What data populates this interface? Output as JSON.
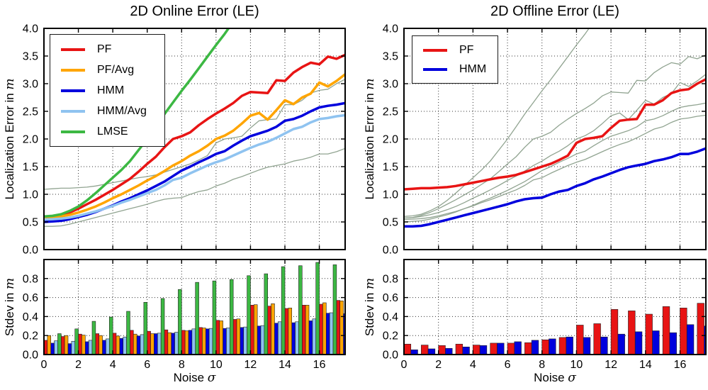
{
  "figure": {
    "background": "#ffffff",
    "axis_color": "#000000",
    "grid_color": "#333333",
    "palette": {
      "pf": "#e81414",
      "pf_avg": "#ffa500",
      "hmm": "#0000dd",
      "hmm_avg": "#8fc3f0",
      "lmse": "#3cb843",
      "reference": "#91a491"
    }
  },
  "chart_data": [
    {
      "id": "online-error",
      "type": "line",
      "title": "2D Online Error (LE)",
      "ylabel": {
        "text": "Localization Error in ",
        "math": "m"
      },
      "xlabel": null,
      "xlim": [
        0,
        17.5
      ],
      "ylim": [
        0,
        4
      ],
      "xticks": [
        0,
        2,
        4,
        6,
        8,
        10,
        12,
        14,
        16
      ],
      "xtick_labels": null,
      "yticks": [
        0,
        0.5,
        1,
        1.5,
        2,
        2.5,
        3,
        3.5,
        4
      ],
      "ytick_labels": [
        "0.0",
        "0.5",
        "1.0",
        "1.5",
        "2.0",
        "2.5",
        "3.0",
        "3.5",
        "4.0"
      ],
      "legend_position": "top-left",
      "x": [
        0,
        0.5,
        1,
        1.5,
        2,
        2.5,
        3,
        3.5,
        4,
        4.5,
        5,
        5.5,
        6,
        6.5,
        7,
        7.5,
        8,
        8.5,
        9,
        9.5,
        10,
        10.5,
        11,
        11.5,
        12,
        12.5,
        13,
        13.5,
        14,
        14.5,
        15,
        15.5,
        16,
        16.5,
        17,
        17.5
      ],
      "series": [
        {
          "name": "PF",
          "role": "offline-reference",
          "color": "#91a491",
          "width": 1.3,
          "in_legend": false,
          "values": [
            1.09,
            1.1,
            1.11,
            1.11,
            1.12,
            1.13,
            1.15,
            1.18,
            1.21,
            1.24,
            1.27,
            1.3,
            1.32,
            1.35,
            1.4,
            1.45,
            1.5,
            1.55,
            1.62,
            1.7,
            1.93,
            2.0,
            2.02,
            2.05,
            2.2,
            2.33,
            2.35,
            2.36,
            2.62,
            2.62,
            2.7,
            2.83,
            2.88,
            2.9,
            3.0,
            3.08
          ]
        },
        {
          "name": "HMM",
          "role": "offline-reference",
          "color": "#91a491",
          "width": 1.3,
          "in_legend": false,
          "values": [
            0.42,
            0.42,
            0.43,
            0.46,
            0.5,
            0.54,
            0.58,
            0.62,
            0.66,
            0.7,
            0.74,
            0.78,
            0.82,
            0.87,
            0.91,
            0.93,
            0.94,
            1.0,
            1.05,
            1.08,
            1.15,
            1.2,
            1.27,
            1.32,
            1.38,
            1.44,
            1.49,
            1.52,
            1.55,
            1.6,
            1.63,
            1.67,
            1.73,
            1.73,
            1.77,
            1.83
          ]
        },
        {
          "name": "PF",
          "role": "main",
          "color": "#e81414",
          "width": 3.5,
          "in_legend": true,
          "values": [
            0.57,
            0.58,
            0.62,
            0.67,
            0.74,
            0.82,
            0.9,
            0.99,
            1.08,
            1.18,
            1.28,
            1.41,
            1.55,
            1.68,
            1.85,
            2.0,
            2.05,
            2.12,
            2.25,
            2.36,
            2.46,
            2.55,
            2.65,
            2.78,
            2.85,
            2.84,
            2.83,
            3.06,
            3.05,
            3.2,
            3.3,
            3.38,
            3.35,
            3.49,
            3.45,
            3.52
          ]
        },
        {
          "name": "PF/Avg",
          "role": "main",
          "color": "#ffa500",
          "width": 3.5,
          "in_legend": true,
          "values": [
            0.57,
            0.575,
            0.6,
            0.63,
            0.67,
            0.72,
            0.78,
            0.85,
            0.93,
            1.0,
            1.08,
            1.16,
            1.25,
            1.33,
            1.42,
            1.52,
            1.6,
            1.7,
            1.78,
            1.88,
            2.0,
            2.06,
            2.15,
            2.28,
            2.42,
            2.47,
            2.35,
            2.52,
            2.7,
            2.63,
            2.75,
            2.82,
            3.02,
            2.95,
            3.05,
            3.17
          ]
        },
        {
          "name": "HMM",
          "role": "main",
          "color": "#0000dd",
          "width": 3.5,
          "in_legend": true,
          "values": [
            0.5,
            0.51,
            0.52,
            0.55,
            0.59,
            0.63,
            0.68,
            0.74,
            0.8,
            0.87,
            0.93,
            1.0,
            1.07,
            1.15,
            1.23,
            1.33,
            1.43,
            1.5,
            1.58,
            1.65,
            1.73,
            1.78,
            1.88,
            1.97,
            2.05,
            2.1,
            2.15,
            2.22,
            2.33,
            2.36,
            2.42,
            2.5,
            2.57,
            2.6,
            2.62,
            2.65
          ]
        },
        {
          "name": "HMM/Avg",
          "role": "main",
          "color": "#8fc3f0",
          "width": 3.5,
          "in_legend": true,
          "values": [
            0.545,
            0.55,
            0.56,
            0.58,
            0.61,
            0.65,
            0.69,
            0.74,
            0.79,
            0.85,
            0.9,
            0.96,
            1.02,
            1.08,
            1.16,
            1.26,
            1.3,
            1.38,
            1.45,
            1.52,
            1.58,
            1.63,
            1.7,
            1.77,
            1.84,
            1.9,
            1.95,
            2.02,
            2.1,
            2.18,
            2.22,
            2.3,
            2.36,
            2.38,
            2.41,
            2.43
          ]
        },
        {
          "name": "LMSE",
          "role": "main",
          "color": "#3cb843",
          "width": 3.5,
          "in_legend": true,
          "values": [
            0.6,
            0.61,
            0.64,
            0.7,
            0.78,
            0.89,
            1.02,
            1.16,
            1.3,
            1.44,
            1.6,
            1.8,
            2.0,
            2.22,
            2.45,
            2.66,
            2.87,
            3.07,
            3.28,
            3.49,
            3.7,
            3.9,
            4.12,
            null,
            null,
            null,
            null,
            null,
            null,
            null,
            null,
            null,
            null,
            null,
            null,
            null
          ]
        }
      ]
    },
    {
      "id": "offline-error",
      "type": "line",
      "title": "2D Offline Error (LE)",
      "ylabel": {
        "text": "Localization Error in ",
        "math": "m"
      },
      "xlabel": null,
      "xlim": [
        0,
        17.5
      ],
      "ylim": [
        0,
        4
      ],
      "xticks": [
        0,
        2,
        4,
        6,
        8,
        10,
        12,
        14,
        16
      ],
      "xtick_labels": null,
      "yticks": [
        0,
        0.5,
        1,
        1.5,
        2,
        2.5,
        3,
        3.5,
        4
      ],
      "ytick_labels": [
        "0.0",
        "0.5",
        "1.0",
        "1.5",
        "2.0",
        "2.5",
        "3.0",
        "3.5",
        "4.0"
      ],
      "legend_position": "top-left",
      "x": [
        0,
        0.5,
        1,
        1.5,
        2,
        2.5,
        3,
        3.5,
        4,
        4.5,
        5,
        5.5,
        6,
        6.5,
        7,
        7.5,
        8,
        8.5,
        9,
        9.5,
        10,
        10.5,
        11,
        11.5,
        12,
        12.5,
        13,
        13.5,
        14,
        14.5,
        15,
        15.5,
        16,
        16.5,
        17,
        17.5
      ],
      "series": [
        {
          "name": "PF",
          "role": "online-reference",
          "color": "#91a491",
          "width": 1.3,
          "in_legend": false,
          "values": [
            0.57,
            0.58,
            0.62,
            0.67,
            0.74,
            0.82,
            0.9,
            0.99,
            1.08,
            1.18,
            1.28,
            1.41,
            1.55,
            1.68,
            1.85,
            2.0,
            2.05,
            2.12,
            2.25,
            2.36,
            2.46,
            2.55,
            2.65,
            2.78,
            2.85,
            2.84,
            2.83,
            3.06,
            3.05,
            3.2,
            3.3,
            3.38,
            3.35,
            3.49,
            3.45,
            3.52
          ]
        },
        {
          "name": "PF/Avg",
          "role": "online-reference",
          "color": "#91a491",
          "width": 1.3,
          "in_legend": false,
          "values": [
            0.57,
            0.575,
            0.6,
            0.63,
            0.67,
            0.72,
            0.78,
            0.85,
            0.93,
            1.0,
            1.08,
            1.16,
            1.25,
            1.33,
            1.42,
            1.52,
            1.6,
            1.7,
            1.78,
            1.88,
            2.0,
            2.06,
            2.15,
            2.28,
            2.42,
            2.47,
            2.35,
            2.52,
            2.7,
            2.63,
            2.75,
            2.82,
            3.02,
            2.95,
            3.05,
            3.17
          ]
        },
        {
          "name": "HMM",
          "role": "online-reference",
          "color": "#91a491",
          "width": 1.3,
          "in_legend": false,
          "values": [
            0.5,
            0.51,
            0.52,
            0.55,
            0.59,
            0.63,
            0.68,
            0.74,
            0.8,
            0.87,
            0.93,
            1.0,
            1.07,
            1.15,
            1.23,
            1.33,
            1.43,
            1.5,
            1.58,
            1.65,
            1.73,
            1.78,
            1.88,
            1.97,
            2.05,
            2.1,
            2.15,
            2.22,
            2.33,
            2.36,
            2.42,
            2.5,
            2.57,
            2.6,
            2.62,
            2.65
          ]
        },
        {
          "name": "HMM/Avg",
          "role": "online-reference",
          "color": "#91a491",
          "width": 1.3,
          "in_legend": false,
          "values": [
            0.545,
            0.55,
            0.56,
            0.58,
            0.61,
            0.65,
            0.69,
            0.74,
            0.79,
            0.85,
            0.9,
            0.96,
            1.02,
            1.08,
            1.16,
            1.26,
            1.3,
            1.38,
            1.45,
            1.52,
            1.58,
            1.63,
            1.7,
            1.77,
            1.84,
            1.9,
            1.95,
            2.02,
            2.1,
            2.18,
            2.22,
            2.3,
            2.36,
            2.38,
            2.41,
            2.43
          ]
        },
        {
          "name": "LMSE",
          "role": "online-reference",
          "color": "#91a491",
          "width": 1.3,
          "in_legend": false,
          "values": [
            0.6,
            0.61,
            0.64,
            0.7,
            0.78,
            0.89,
            1.02,
            1.16,
            1.3,
            1.44,
            1.6,
            1.8,
            2.0,
            2.22,
            2.45,
            2.66,
            2.87,
            3.07,
            3.28,
            3.49,
            3.7,
            3.9,
            4.12,
            null,
            null,
            null,
            null,
            null,
            null,
            null,
            null,
            null,
            null,
            null,
            null,
            null
          ]
        },
        {
          "name": "PF",
          "role": "main",
          "color": "#e81414",
          "width": 3.5,
          "in_legend": true,
          "values": [
            1.09,
            1.1,
            1.11,
            1.11,
            1.12,
            1.13,
            1.15,
            1.18,
            1.21,
            1.24,
            1.27,
            1.3,
            1.32,
            1.35,
            1.4,
            1.45,
            1.5,
            1.55,
            1.62,
            1.7,
            1.93,
            2.0,
            2.02,
            2.05,
            2.2,
            2.33,
            2.35,
            2.36,
            2.62,
            2.62,
            2.7,
            2.83,
            2.88,
            2.9,
            3.0,
            3.08
          ]
        },
        {
          "name": "HMM",
          "role": "main",
          "color": "#0000dd",
          "width": 3.5,
          "in_legend": true,
          "values": [
            0.42,
            0.42,
            0.43,
            0.46,
            0.5,
            0.54,
            0.58,
            0.62,
            0.66,
            0.7,
            0.74,
            0.78,
            0.82,
            0.87,
            0.91,
            0.93,
            0.94,
            1.0,
            1.05,
            1.08,
            1.15,
            1.2,
            1.27,
            1.32,
            1.38,
            1.44,
            1.49,
            1.52,
            1.55,
            1.6,
            1.63,
            1.67,
            1.73,
            1.73,
            1.77,
            1.83
          ]
        }
      ]
    },
    {
      "id": "online-stdev",
      "type": "bar",
      "title": null,
      "ylabel": {
        "text": "Stdev in ",
        "math": "m"
      },
      "xlabel": {
        "text": "Noise ",
        "math": "σ"
      },
      "xlim": [
        0,
        17.5
      ],
      "ylim": [
        0,
        1.0
      ],
      "xticks": [
        0,
        2,
        4,
        6,
        8,
        10,
        12,
        14,
        16
      ],
      "xtick_labels": [
        "0",
        "2",
        "4",
        "6",
        "8",
        "10",
        "12",
        "14",
        "16"
      ],
      "yticks": [
        0,
        0.2,
        0.4,
        0.6,
        0.8
      ],
      "ytick_labels": [
        "0.0",
        "0.2",
        "0.4",
        "0.6",
        "0.8"
      ],
      "bar_width": 0.2,
      "categories": [
        0,
        1,
        2,
        3,
        4,
        5,
        6,
        7,
        8,
        9,
        10,
        11,
        12,
        13,
        14,
        15,
        16,
        17
      ],
      "series": [
        {
          "name": "PF",
          "color": "#e81414",
          "values": [
            0.15,
            0.19,
            0.215,
            0.22,
            0.225,
            0.255,
            0.245,
            0.26,
            0.255,
            0.285,
            0.36,
            0.37,
            0.52,
            0.51,
            0.485,
            0.52,
            0.53,
            0.57
          ]
        },
        {
          "name": "PF/Avg",
          "color": "#ffa500",
          "values": [
            0.2,
            0.2,
            0.205,
            0.2,
            0.195,
            0.215,
            0.22,
            0.23,
            0.25,
            0.28,
            0.355,
            0.375,
            0.525,
            0.535,
            0.49,
            0.52,
            0.545,
            0.565
          ]
        },
        {
          "name": "HMM",
          "color": "#0000dd",
          "values": [
            0.12,
            0.115,
            0.135,
            0.15,
            0.17,
            0.195,
            0.22,
            0.225,
            0.255,
            0.27,
            0.275,
            0.285,
            0.3,
            0.33,
            0.335,
            0.355,
            0.435,
            0.43
          ]
        },
        {
          "name": "HMM/Avg",
          "color": "#8fc3f0",
          "values": [
            0.145,
            0.14,
            0.15,
            0.165,
            0.185,
            0.21,
            0.225,
            0.235,
            0.27,
            0.275,
            0.28,
            0.29,
            0.305,
            0.345,
            0.345,
            0.375,
            0.44,
            0.44
          ]
        },
        {
          "name": "LMSE",
          "color": "#3cb843",
          "values": [
            0.22,
            0.27,
            0.35,
            0.395,
            0.455,
            0.55,
            0.59,
            0.685,
            0.76,
            0.775,
            0.79,
            0.83,
            0.85,
            0.925,
            0.935,
            0.97,
            0.945,
            0.95
          ]
        }
      ]
    },
    {
      "id": "offline-stdev",
      "type": "bar",
      "title": null,
      "ylabel": {
        "text": "Stdev in ",
        "math": "m"
      },
      "xlabel": {
        "text": "Noise ",
        "math": "σ"
      },
      "xlim": [
        0,
        17.5
      ],
      "ylim": [
        0,
        1.0
      ],
      "xticks": [
        0,
        2,
        4,
        6,
        8,
        10,
        12,
        14,
        16
      ],
      "xtick_labels": [
        "0",
        "2",
        "4",
        "6",
        "8",
        "10",
        "12",
        "14",
        "16"
      ],
      "yticks": [
        0,
        0.2,
        0.4,
        0.6,
        0.8
      ],
      "ytick_labels": [
        "0.0",
        "0.2",
        "0.4",
        "0.6",
        "0.8"
      ],
      "bar_width": 0.4,
      "categories": [
        0,
        1,
        2,
        3,
        4,
        5,
        6,
        7,
        8,
        9,
        10,
        11,
        12,
        13,
        14,
        15,
        16,
        17
      ],
      "series": [
        {
          "name": "PF",
          "color": "#e81414",
          "values": [
            0.11,
            0.1,
            0.095,
            0.11,
            0.1,
            0.12,
            0.12,
            0.125,
            0.155,
            0.18,
            0.31,
            0.325,
            0.475,
            0.46,
            0.425,
            0.505,
            0.49,
            0.54
          ]
        },
        {
          "name": "HMM",
          "color": "#0000dd",
          "values": [
            0.05,
            0.06,
            0.065,
            0.08,
            0.095,
            0.12,
            0.135,
            0.15,
            0.165,
            0.185,
            0.18,
            0.185,
            0.215,
            0.24,
            0.25,
            0.23,
            0.315,
            0.3
          ]
        }
      ]
    }
  ]
}
